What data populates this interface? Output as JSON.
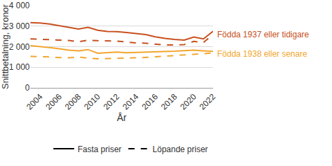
{
  "chart_data": {
    "type": "line",
    "x": [
      2003,
      2004,
      2005,
      2006,
      2007,
      2008,
      2009,
      2010,
      2011,
      2012,
      2013,
      2014,
      2015,
      2016,
      2017,
      2018,
      2019,
      2020,
      2021,
      2022
    ],
    "series": [
      {
        "color": "#c8501e",
        "line_style": "solid",
        "values": [
          3170,
          3150,
          3100,
          3020,
          2950,
          2860,
          2940,
          2800,
          2740,
          2730,
          2690,
          2640,
          2590,
          2480,
          2400,
          2350,
          2320,
          2470,
          2380,
          2750
        ]
      },
      {
        "color": "#c8501e",
        "line_style": "dashed",
        "values": [
          2380,
          2370,
          2340,
          2320,
          2300,
          2240,
          2320,
          2290,
          2290,
          2270,
          2230,
          2180,
          2170,
          2130,
          2080,
          2080,
          2100,
          2260,
          2200,
          2600
        ]
      },
      {
        "color": "#f2a62e",
        "line_style": "solid",
        "values": [
          2050,
          2010,
          1960,
          1900,
          1830,
          1800,
          1860,
          1680,
          1700,
          1740,
          1710,
          1720,
          1740,
          1760,
          1760,
          1780,
          1810,
          1830,
          1800,
          1770
        ]
      },
      {
        "color": "#f2a62e",
        "line_style": "dashed",
        "values": [
          1530,
          1520,
          1500,
          1470,
          1460,
          1500,
          1440,
          1410,
          1420,
          1440,
          1430,
          1460,
          1480,
          1510,
          1530,
          1550,
          1580,
          1630,
          1660,
          1700
        ]
      }
    ],
    "annotations": [
      {
        "text": "Födda 1937 eller tidigare",
        "x": 2022,
        "y": 2580,
        "color": "#c8501e"
      },
      {
        "text": "Födda 1938 eller senare",
        "x": 2022,
        "y": 1660,
        "color": "#f2a62e"
      }
    ],
    "legend_entries": [
      {
        "name": "Fasta priser",
        "line_style": "solid"
      },
      {
        "name": "Löpande priser",
        "line_style": "dashed"
      }
    ],
    "legend": "bottom",
    "x_label": "År",
    "y_label": "Snittbetalning, kronor",
    "xlim": [
      2003,
      2022
    ],
    "xticks": [
      2004,
      2006,
      2008,
      2010,
      2012,
      2014,
      2016,
      2018,
      2020,
      2022
    ],
    "ylim": [
      0,
      4000
    ],
    "yticks": [
      0,
      {
        "value": 1000,
        "label": "1 000"
      },
      {
        "value": 2000,
        "label": "2 000"
      },
      {
        "value": 3000,
        "label": "3 000"
      },
      {
        "value": 4000,
        "label": "4 000"
      }
    ],
    "grid": true
  }
}
